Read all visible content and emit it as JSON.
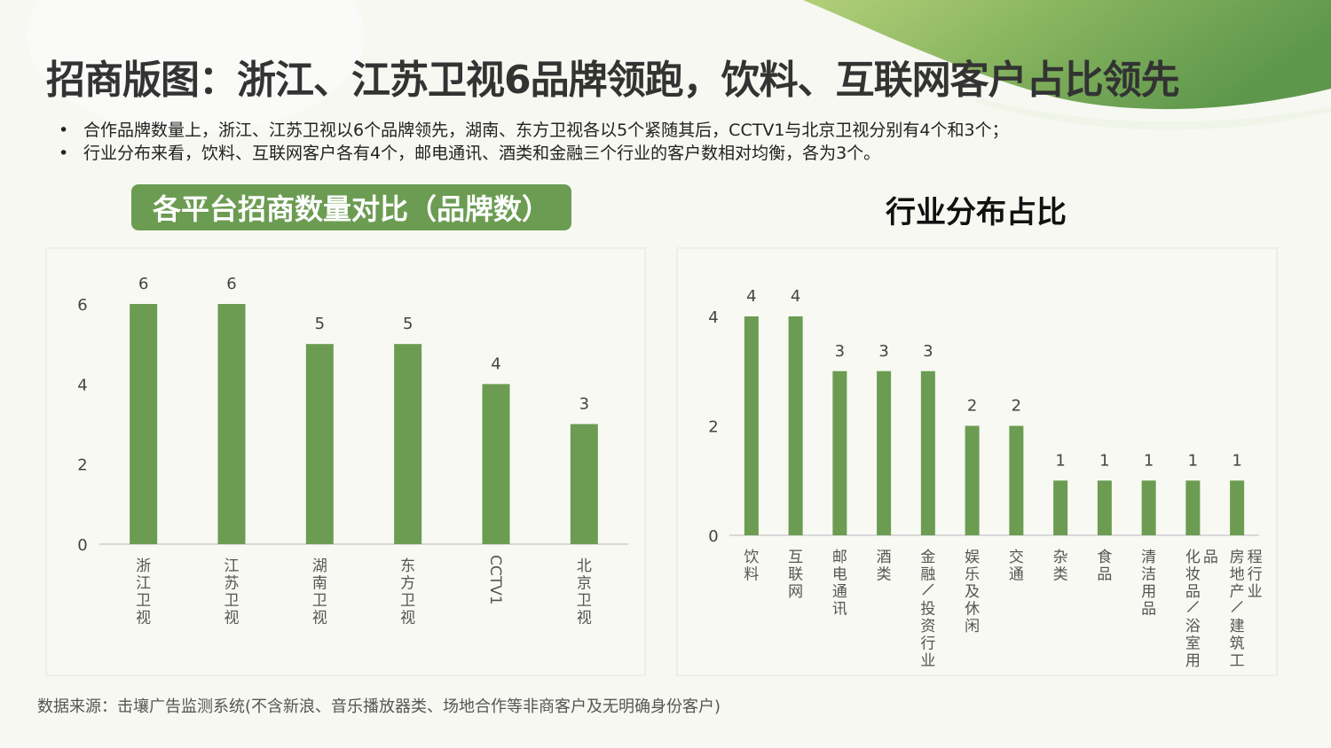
{
  "page": {
    "title": "招商版图：浙江、江苏卫视6品牌领跑，饮料、互联网客户占比领先",
    "bullets": [
      "合作品牌数量上，浙江、江苏卫视以6个品牌领先，湖南、东方卫视各以5个紧随其后，CCTV1与北京卫视分别有4个和3个；",
      "行业分布来看，饮料、互联网客户各有4个，邮电通讯、酒类和金融三个行业的客户数相对均衡，各为3个。"
    ],
    "source": "数据来源：击壤广告监测系统(不含新浪、音乐播放器类、场地合作等非商客户及无明确身份客户)"
  },
  "colors": {
    "bar": "#6b9c52",
    "pill": "#6b9c52",
    "accent_wave_start": "#a6c46d",
    "accent_wave_end": "#5f9a4e",
    "axis": "#d9d9d9",
    "text": "#333333"
  },
  "chart_data": [
    {
      "type": "bar",
      "title": "各平台招商数量对比（品牌数）",
      "categories": [
        "浙江卫视",
        "江苏卫视",
        "湖南卫视",
        "东方卫视",
        "CCTV1",
        "北京卫视"
      ],
      "values": [
        6,
        6,
        5,
        5,
        4,
        3
      ],
      "xlabel": "",
      "ylabel": "",
      "ylim": [
        0,
        6
      ],
      "yticks": [
        0,
        2,
        4,
        6
      ],
      "data_labels": true,
      "grid": false,
      "legend": null,
      "x_label_orientation": "vertical"
    },
    {
      "type": "bar",
      "title": "行业分布占比",
      "categories": [
        "饮料",
        "互联网",
        "邮电通讯",
        "酒类",
        "金融/投资行业",
        "娱乐及休闲",
        "交通",
        "杂类",
        "食品",
        "清洁用品",
        "化妆品/浴室用品",
        "房地产/建筑工程行业"
      ],
      "values": [
        4,
        4,
        3,
        3,
        3,
        2,
        2,
        1,
        1,
        1,
        1,
        1
      ],
      "xlabel": "",
      "ylabel": "",
      "ylim": [
        0,
        4
      ],
      "yticks": [
        0,
        2,
        4
      ],
      "data_labels": true,
      "grid": false,
      "legend": null,
      "x_label_orientation": "vertical"
    }
  ]
}
